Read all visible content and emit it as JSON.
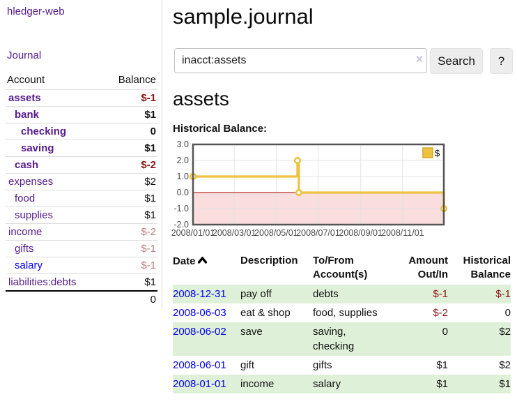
{
  "app": {
    "title": "hledger-web"
  },
  "nav": {
    "journal_label": "Journal"
  },
  "sidebar": {
    "accounts": {
      "headers": {
        "account": "Account",
        "balance": "Balance"
      },
      "rows": [
        {
          "name": "assets",
          "depth": 1,
          "bold": true,
          "balance": "$-1",
          "neg": true
        },
        {
          "name": "bank",
          "depth": 2,
          "bold": true,
          "balance": "$1"
        },
        {
          "name": "checking",
          "depth": 3,
          "bold": true,
          "balance": "0"
        },
        {
          "name": "saving",
          "depth": 3,
          "bold": true,
          "balance": "$1"
        },
        {
          "name": "cash",
          "depth": 2,
          "bold": true,
          "balance": "$-2",
          "neg": true
        },
        {
          "name": "expenses",
          "depth": 1,
          "bold": false,
          "balance": "$2"
        },
        {
          "name": "food",
          "depth": 2,
          "bold": false,
          "balance": "$1"
        },
        {
          "name": "supplies",
          "depth": 2,
          "bold": false,
          "balance": "$1"
        },
        {
          "name": "income",
          "depth": 1,
          "bold": false,
          "balance": "$-2",
          "dim": true
        },
        {
          "name": "gifts",
          "depth": 2,
          "bold": false,
          "balance": "$-1",
          "dim": true
        },
        {
          "name": "salary",
          "depth": 2,
          "bold": false,
          "balance": "$-1",
          "dim": true,
          "blue": true
        },
        {
          "name": "liabilities:debts",
          "depth": 1,
          "bold": false,
          "balance": "$1"
        }
      ],
      "total": "0"
    }
  },
  "header": {
    "title": "sample.journal"
  },
  "search": {
    "value": "inacct:assets",
    "clear_icon": "×",
    "button_label": "Search",
    "help_label": "?"
  },
  "main": {
    "section_title": "assets",
    "chart_label": "Historical Balance:"
  },
  "chart_data": {
    "type": "line",
    "title": "Historical Balance:",
    "series": [
      {
        "name": "$",
        "color": "#edc240",
        "step": true,
        "points": [
          [
            "2008-01-01",
            1
          ],
          [
            "2008-06-01",
            2
          ],
          [
            "2008-06-03",
            0
          ],
          [
            "2008-12-31",
            -1
          ]
        ]
      }
    ],
    "x_tick_labels": [
      "2008/01/01",
      "2008/03/01",
      "2008/05/01",
      "2008/07/01",
      "2008/09/01",
      "2008/11/01"
    ],
    "y_ticks": [
      3.0,
      2.0,
      1.0,
      0.0,
      -1.0,
      -2.0
    ],
    "xrange": [
      "2008-01-01",
      "2008-12-31"
    ],
    "ylim": [
      -2,
      3
    ],
    "grid": true,
    "legend": {
      "label": "$",
      "position": "top-right"
    },
    "colors": {
      "series": "#edc240",
      "series_border": "#cfa92c",
      "negative_region": "#fadddd",
      "zero_line": "#a40000",
      "grid": "#e3e3e3",
      "border": "#545454",
      "tick_text": "#4a4a4a"
    }
  },
  "register": {
    "headers": {
      "date": "Date",
      "description": "Description",
      "accounts": "To/From Account(s)",
      "amount": "Amount Out/In",
      "balance": "Historical Balance"
    },
    "rows": [
      {
        "date": "2008-12-31",
        "description": "pay off",
        "accounts": "debts",
        "amount": "$-1",
        "amount_neg": true,
        "balance": "$-1",
        "balance_neg": true,
        "green": true
      },
      {
        "date": "2008-06-03",
        "description": "eat & shop",
        "accounts": "food, supplies",
        "amount": "$-2",
        "amount_neg": true,
        "balance": "0",
        "balance_neg": false,
        "green": false
      },
      {
        "date": "2008-06-02",
        "description": "save",
        "accounts": "saving, checking",
        "amount": "0",
        "amount_neg": false,
        "balance": "$2",
        "balance_neg": false,
        "green": true
      },
      {
        "date": "2008-06-01",
        "description": "gift",
        "accounts": "gifts",
        "amount": "$1",
        "amount_neg": false,
        "balance": "$2",
        "balance_neg": false,
        "green": false
      },
      {
        "date": "2008-01-01",
        "description": "income",
        "accounts": "salary",
        "amount": "$1",
        "amount_neg": false,
        "balance": "$1",
        "balance_neg": false,
        "green": true
      }
    ]
  }
}
